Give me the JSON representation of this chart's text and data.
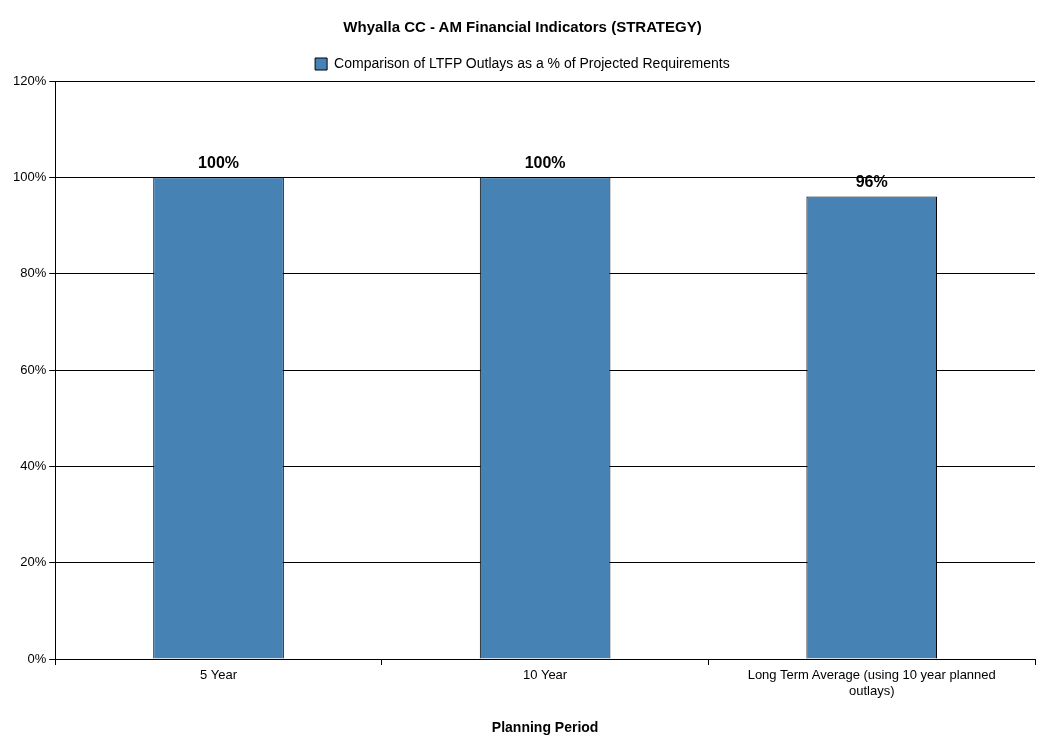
{
  "chart_data": {
    "type": "bar",
    "title": "Whyalla CC - AM Financial Indicators (STRATEGY)",
    "xlabel": "Planning Period",
    "categories": [
      "5 Year",
      "10 Year",
      "Long Term Average (using 10 year planned outlays)"
    ],
    "series": [
      {
        "name": "Comparison of LTFP Outlays as a % of Projected Requirements",
        "color": "#4682b4",
        "values": [
          100,
          100,
          96
        ],
        "value_labels": [
          "100%",
          "100%",
          "96%"
        ]
      }
    ],
    "ylim": [
      0,
      120
    ],
    "yticks": [
      {
        "value": 0,
        "label": "0%"
      },
      {
        "value": 20,
        "label": "20%"
      },
      {
        "value": 40,
        "label": "40%"
      },
      {
        "value": 60,
        "label": "60%"
      },
      {
        "value": 80,
        "label": "80%"
      },
      {
        "value": 100,
        "label": "100%"
      },
      {
        "value": 120,
        "label": "120%"
      }
    ],
    "grid": "y",
    "legend": "top"
  }
}
